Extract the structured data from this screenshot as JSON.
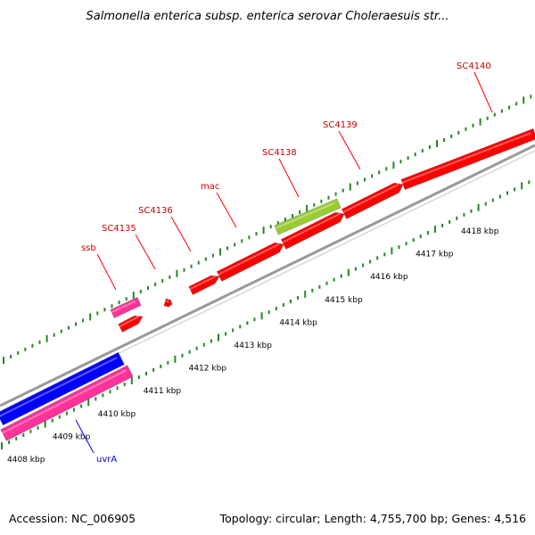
{
  "title": "Salmonella enterica subsp. enterica serovar Choleraesuis str...",
  "footer": {
    "accession": "Accession: NC_006905",
    "topology": "Topology: circular; Length: 4,755,700 bp; Genes: 4,516"
  },
  "colors": {
    "forward_gene": "#ff0000",
    "reverse_gene": "#0000ff",
    "pink_gene": "#ff3399",
    "green_gene": "#99cc33",
    "backbone": "#999999",
    "ticks": "#228822",
    "forward_label": "#cc0000",
    "reverse_label": "#0000cc"
  },
  "scale": {
    "unit": "kbp",
    "labels": [
      "4408 kbp",
      "4409 kbp",
      "4410 kbp",
      "4411 kbp",
      "4412 kbp",
      "4413 kbp",
      "4414 kbp",
      "4415 kbp",
      "4416 kbp",
      "4417 kbp",
      "4418 kbp"
    ]
  },
  "gene_labels": [
    {
      "name": "ssb",
      "strand": "forward"
    },
    {
      "name": "SC4135",
      "strand": "forward"
    },
    {
      "name": "SC4136",
      "strand": "forward"
    },
    {
      "name": "mac",
      "strand": "forward"
    },
    {
      "name": "SC4138",
      "strand": "forward"
    },
    {
      "name": "SC4139",
      "strand": "forward"
    },
    {
      "name": "SC4140",
      "strand": "forward"
    },
    {
      "name": "uvrA",
      "strand": "reverse"
    }
  ]
}
